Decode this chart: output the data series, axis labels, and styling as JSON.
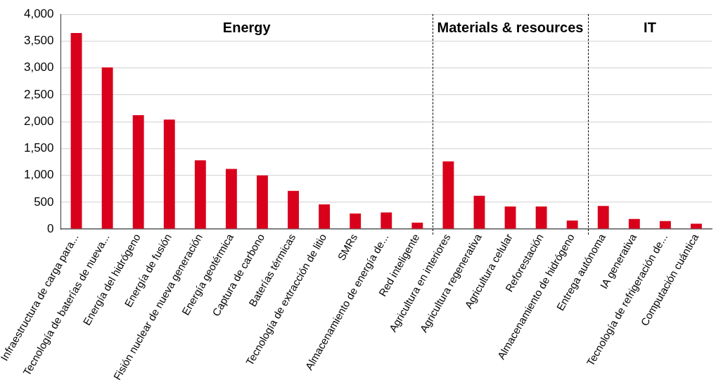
{
  "chart_data": {
    "type": "bar",
    "categories": [
      "Infraestructura de carga para...",
      "Tecnología de baterías de nueva...",
      "Energía del hidrógeno",
      "Energía de fusión",
      "Fisión nuclear de nueva generación",
      "Energía geotérmica",
      "Captura de carbono",
      "Baterías térmicas",
      "Tecnología de extracción de litio",
      "SMRs",
      "Almacenamiento de energía de...",
      "Red inteligente",
      "Agricultura en interiores",
      "Agricultura regenerativa",
      "Agricultura celular",
      "Reforestación",
      "Almacenamiento de hidrógeno",
      "Entrega autónoma",
      "IA generativa",
      "Tecnología de refrigeración de...",
      "Computación cuántica"
    ],
    "values": [
      3650,
      3010,
      2120,
      2040,
      1280,
      1120,
      1000,
      710,
      460,
      290,
      310,
      120,
      1260,
      620,
      420,
      420,
      160,
      430,
      190,
      150,
      100
    ],
    "color": "#d9001b",
    "ylim": [
      0,
      4000
    ],
    "yticks": [
      0,
      500,
      {
        "value": 1000,
        "label": "1,000"
      },
      {
        "value": 1500,
        "label": "1,500"
      },
      {
        "value": 2000,
        "label": "2,000"
      },
      {
        "value": 2500,
        "label": "2,500"
      },
      {
        "value": 3000,
        "label": "3,000"
      },
      {
        "value": 3500,
        "label": "3,500"
      },
      {
        "value": 4000,
        "label": "4,000"
      }
    ],
    "grid": "y",
    "legend": false,
    "annotations": [
      "Energy",
      "Materials & resources",
      "IT"
    ]
  }
}
